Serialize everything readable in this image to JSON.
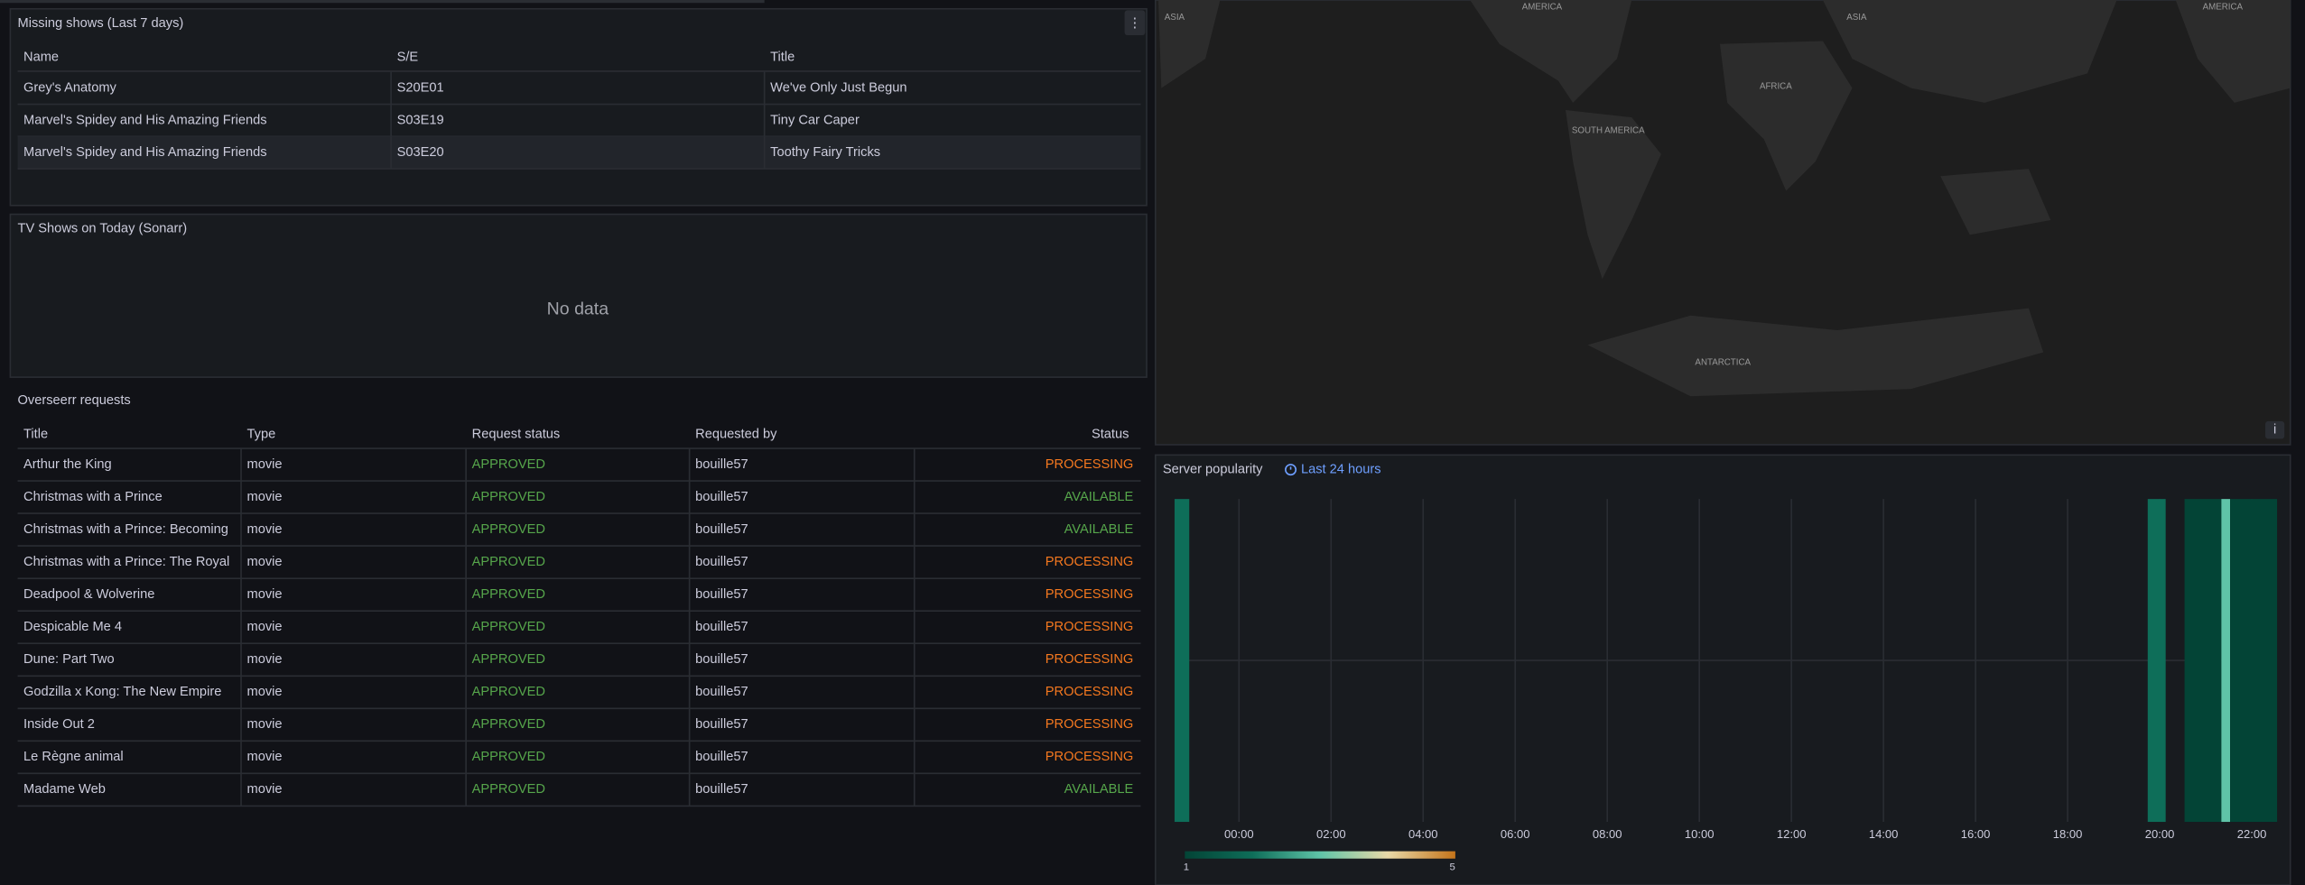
{
  "missing_shows": {
    "title": "Missing shows (Last 7 days)",
    "columns": [
      "Name",
      "S/E",
      "Title"
    ],
    "rows": [
      [
        "Grey's Anatomy",
        "S20E01",
        "We've Only Just Begun"
      ],
      [
        "Marvel's Spidey and His Amazing Friends",
        "S03E19",
        "Tiny Car Caper"
      ],
      [
        "Marvel's Spidey and His Amazing Friends",
        "S03E20",
        "Toothy Fairy Tricks"
      ]
    ]
  },
  "tv_shows_today": {
    "title": "TV Shows on Today (Sonarr)",
    "message": "No data"
  },
  "overseerr_requests": {
    "title": "Overseerr requests",
    "columns": [
      "Title",
      "Type",
      "Request status",
      "Requested by",
      "Status"
    ],
    "request_status_color": "#56a64b",
    "rows": [
      {
        "cells": [
          "Arthur the King",
          "movie",
          "APPROVED",
          "bouille57",
          "PROCESSING"
        ],
        "status_color": "#f5781f"
      },
      {
        "cells": [
          "Christmas with a Prince",
          "movie",
          "APPROVED",
          "bouille57",
          "AVAILABLE"
        ],
        "status_color": "#56a64b"
      },
      {
        "cells": [
          "Christmas with a Prince: Becoming",
          "movie",
          "APPROVED",
          "bouille57",
          "AVAILABLE"
        ],
        "status_color": "#56a64b"
      },
      {
        "cells": [
          "Christmas with a Prince: The Royal",
          "movie",
          "APPROVED",
          "bouille57",
          "PROCESSING"
        ],
        "status_color": "#f5781f"
      },
      {
        "cells": [
          "Deadpool & Wolverine",
          "movie",
          "APPROVED",
          "bouille57",
          "PROCESSING"
        ],
        "status_color": "#f5781f"
      },
      {
        "cells": [
          "Despicable Me 4",
          "movie",
          "APPROVED",
          "bouille57",
          "PROCESSING"
        ],
        "status_color": "#f5781f"
      },
      {
        "cells": [
          "Dune: Part Two",
          "movie",
          "APPROVED",
          "bouille57",
          "PROCESSING"
        ],
        "status_color": "#f5781f"
      },
      {
        "cells": [
          "Godzilla x Kong: The New Empire",
          "movie",
          "APPROVED",
          "bouille57",
          "PROCESSING"
        ],
        "status_color": "#f5781f"
      },
      {
        "cells": [
          "Inside Out 2",
          "movie",
          "APPROVED",
          "bouille57",
          "PROCESSING"
        ],
        "status_color": "#f5781f"
      },
      {
        "cells": [
          "Le Règne animal",
          "movie",
          "APPROVED",
          "bouille57",
          "PROCESSING"
        ],
        "status_color": "#f5781f"
      },
      {
        "cells": [
          "Madame Web",
          "movie",
          "APPROVED",
          "bouille57",
          "AVAILABLE"
        ],
        "status_color": "#56a64b"
      }
    ]
  },
  "map": {
    "labels": [
      "ASIA",
      "AMERICA",
      "ASIA",
      "AFRICA",
      "SOUTH AMERICA",
      "ANTARCTICA",
      "AMERICA"
    ]
  },
  "chart_data": {
    "type": "heatmap",
    "title": "Server popularity",
    "time_range": "Last 24 hours",
    "grid": true,
    "xlim": [
      -1.4,
      22.55
    ],
    "xticks": [
      {
        "value": 0,
        "label": "00:00"
      },
      {
        "value": 2,
        "label": "02:00"
      },
      {
        "value": 4,
        "label": "04:00"
      },
      {
        "value": 6,
        "label": "06:00"
      },
      {
        "value": 8,
        "label": "08:00"
      },
      {
        "value": 10,
        "label": "10:00"
      },
      {
        "value": 12,
        "label": "12:00"
      },
      {
        "value": 14,
        "label": "14:00"
      },
      {
        "value": 16,
        "label": "16:00"
      },
      {
        "value": 18,
        "label": "18:00"
      },
      {
        "value": 20,
        "label": "20:00"
      },
      {
        "value": 22,
        "label": "22:00"
      }
    ],
    "cells": [
      {
        "x": [
          -1.4,
          -1.08
        ],
        "value": 2
      },
      {
        "x": [
          19.74,
          20.13
        ],
        "value": 2
      },
      {
        "x": [
          20.54,
          21.34
        ],
        "value": 1
      },
      {
        "x": [
          21.34,
          21.53
        ],
        "value": 3
      },
      {
        "x": [
          21.53,
          22.55
        ],
        "value": 1
      }
    ],
    "color_scale": {
      "min": 1,
      "max": 5,
      "colors": [
        "#034436",
        "#0e6e59",
        "#5fc4a8",
        "#e8d9a8",
        "#c4741a"
      ]
    }
  }
}
